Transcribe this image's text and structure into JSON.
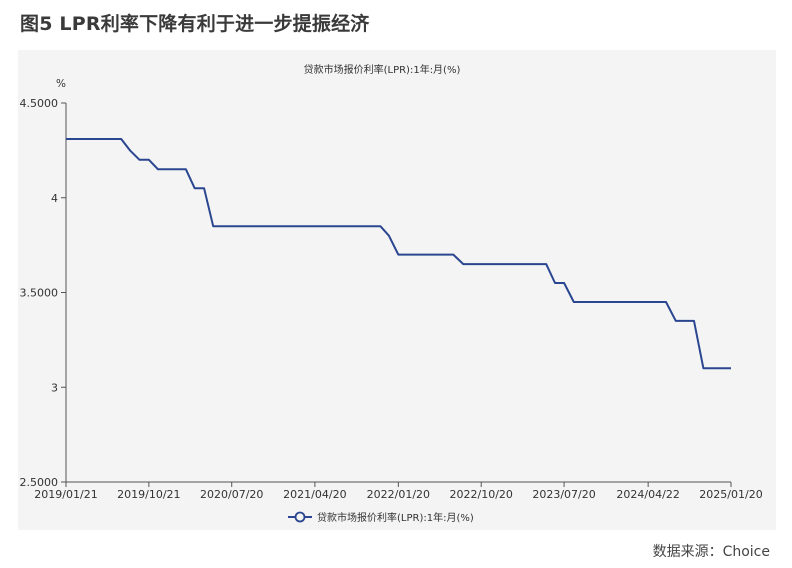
{
  "figure_title": "图5  LPR利率下降有利于进一步提振经济",
  "source": "数据来源：Choice",
  "colors": {
    "series": "#2b4690",
    "axis": "#555555",
    "panel": "#f4f4f4"
  },
  "chart_data": {
    "type": "line",
    "title": "贷款市场报价利率(LPR):1年:月(%)",
    "ylabel": "%",
    "xlabel": "",
    "ylim": [
      2.5,
      4.5
    ],
    "ytick_labels": [
      "2.5000",
      "3",
      "3.5000",
      "4",
      "4.5000"
    ],
    "yticks": [
      2.5,
      3,
      3.5,
      4,
      4.5
    ],
    "xtick_labels": [
      "2019/01/21",
      "2019/10/21",
      "2020/07/20",
      "2021/04/20",
      "2022/01/20",
      "2022/10/20",
      "2023/07/20",
      "2024/04/22",
      "2025/01/20"
    ],
    "grid": false,
    "legend": "bottom-center",
    "series": [
      {
        "name": "贷款市场报价利率(LPR):1年:月(%)",
        "x": [
          "2019/01/21",
          "2019/02/20",
          "2019/03/20",
          "2019/04/22",
          "2019/05/20",
          "2019/06/20",
          "2019/07/22",
          "2019/08/20",
          "2019/09/20",
          "2019/10/21",
          "2019/11/20",
          "2019/12/20",
          "2020/01/20",
          "2020/02/20",
          "2020/03/20",
          "2020/04/20",
          "2020/05/20",
          "2020/06/22",
          "2020/07/20",
          "2020/08/20",
          "2020/09/21",
          "2020/10/20",
          "2020/11/20",
          "2020/12/21",
          "2021/01/20",
          "2021/02/20",
          "2021/03/22",
          "2021/04/20",
          "2021/05/20",
          "2021/06/21",
          "2021/07/20",
          "2021/08/20",
          "2021/09/22",
          "2021/10/20",
          "2021/11/22",
          "2021/12/20",
          "2022/01/20",
          "2022/02/21",
          "2022/03/21",
          "2022/04/20",
          "2022/05/20",
          "2022/06/20",
          "2022/07/20",
          "2022/08/22",
          "2022/09/20",
          "2022/10/20",
          "2022/11/21",
          "2022/12/20",
          "2023/01/20",
          "2023/02/20",
          "2023/03/20",
          "2023/04/20",
          "2023/05/22",
          "2023/06/20",
          "2023/07/20",
          "2023/08/21",
          "2023/09/20",
          "2023/10/20",
          "2023/11/20",
          "2023/12/20",
          "2024/01/22",
          "2024/02/20",
          "2024/03/20",
          "2024/04/22",
          "2024/05/20",
          "2024/06/20",
          "2024/07/22",
          "2024/08/20",
          "2024/09/20",
          "2024/10/21",
          "2024/11/20",
          "2024/12/20",
          "2025/01/20"
        ],
        "values": [
          4.31,
          4.31,
          4.31,
          4.31,
          4.31,
          4.31,
          4.31,
          4.25,
          4.2,
          4.2,
          4.15,
          4.15,
          4.15,
          4.15,
          4.05,
          4.05,
          3.85,
          3.85,
          3.85,
          3.85,
          3.85,
          3.85,
          3.85,
          3.85,
          3.85,
          3.85,
          3.85,
          3.85,
          3.85,
          3.85,
          3.85,
          3.85,
          3.85,
          3.85,
          3.85,
          3.8,
          3.7,
          3.7,
          3.7,
          3.7,
          3.7,
          3.7,
          3.7,
          3.65,
          3.65,
          3.65,
          3.65,
          3.65,
          3.65,
          3.65,
          3.65,
          3.65,
          3.65,
          3.55,
          3.55,
          3.45,
          3.45,
          3.45,
          3.45,
          3.45,
          3.45,
          3.45,
          3.45,
          3.45,
          3.45,
          3.45,
          3.35,
          3.35,
          3.35,
          3.1,
          3.1,
          3.1,
          3.1
        ]
      }
    ]
  }
}
